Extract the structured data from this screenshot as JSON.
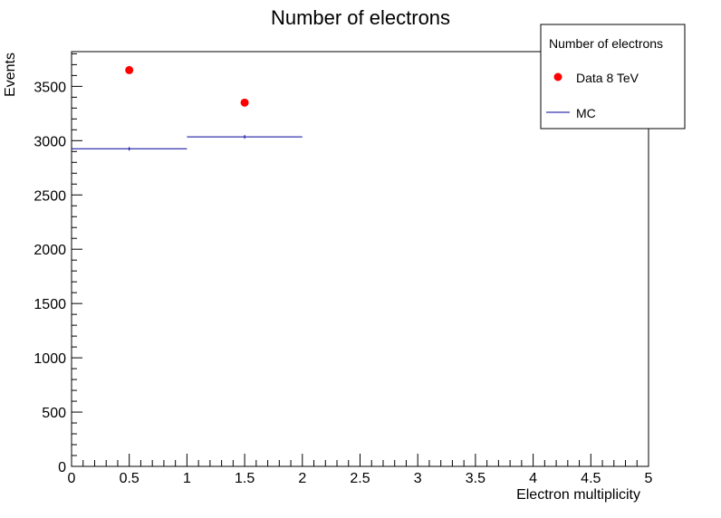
{
  "chart_data": {
    "type": "scatter",
    "title": "Number of electrons",
    "xlabel": "Electron multiplicity",
    "ylabel": "Events",
    "xlim": [
      0,
      5
    ],
    "ylim": [
      0,
      3820
    ],
    "x_ticks": [
      "0",
      "0.5",
      "1",
      "1.5",
      "2",
      "2.5",
      "3",
      "3.5",
      "4",
      "4.5",
      "5"
    ],
    "y_ticks": [
      "0",
      "500",
      "1000",
      "1500",
      "2000",
      "2500",
      "3000",
      "3500"
    ],
    "grid": false,
    "legend": {
      "title": "Number of electrons",
      "placement": "top-right",
      "entries": [
        "Data 8 TeV",
        "MC"
      ]
    },
    "series": [
      {
        "name": "Data 8 TeV",
        "marker": "circle",
        "color": "#ff0000",
        "x": [
          0.5,
          1.5
        ],
        "y": [
          3650,
          3350
        ]
      },
      {
        "name": "MC",
        "style": "histogram-step",
        "color": "#000099",
        "bins": [
          [
            0,
            1
          ],
          [
            1,
            2
          ]
        ],
        "values": [
          2925,
          3035
        ]
      }
    ]
  }
}
